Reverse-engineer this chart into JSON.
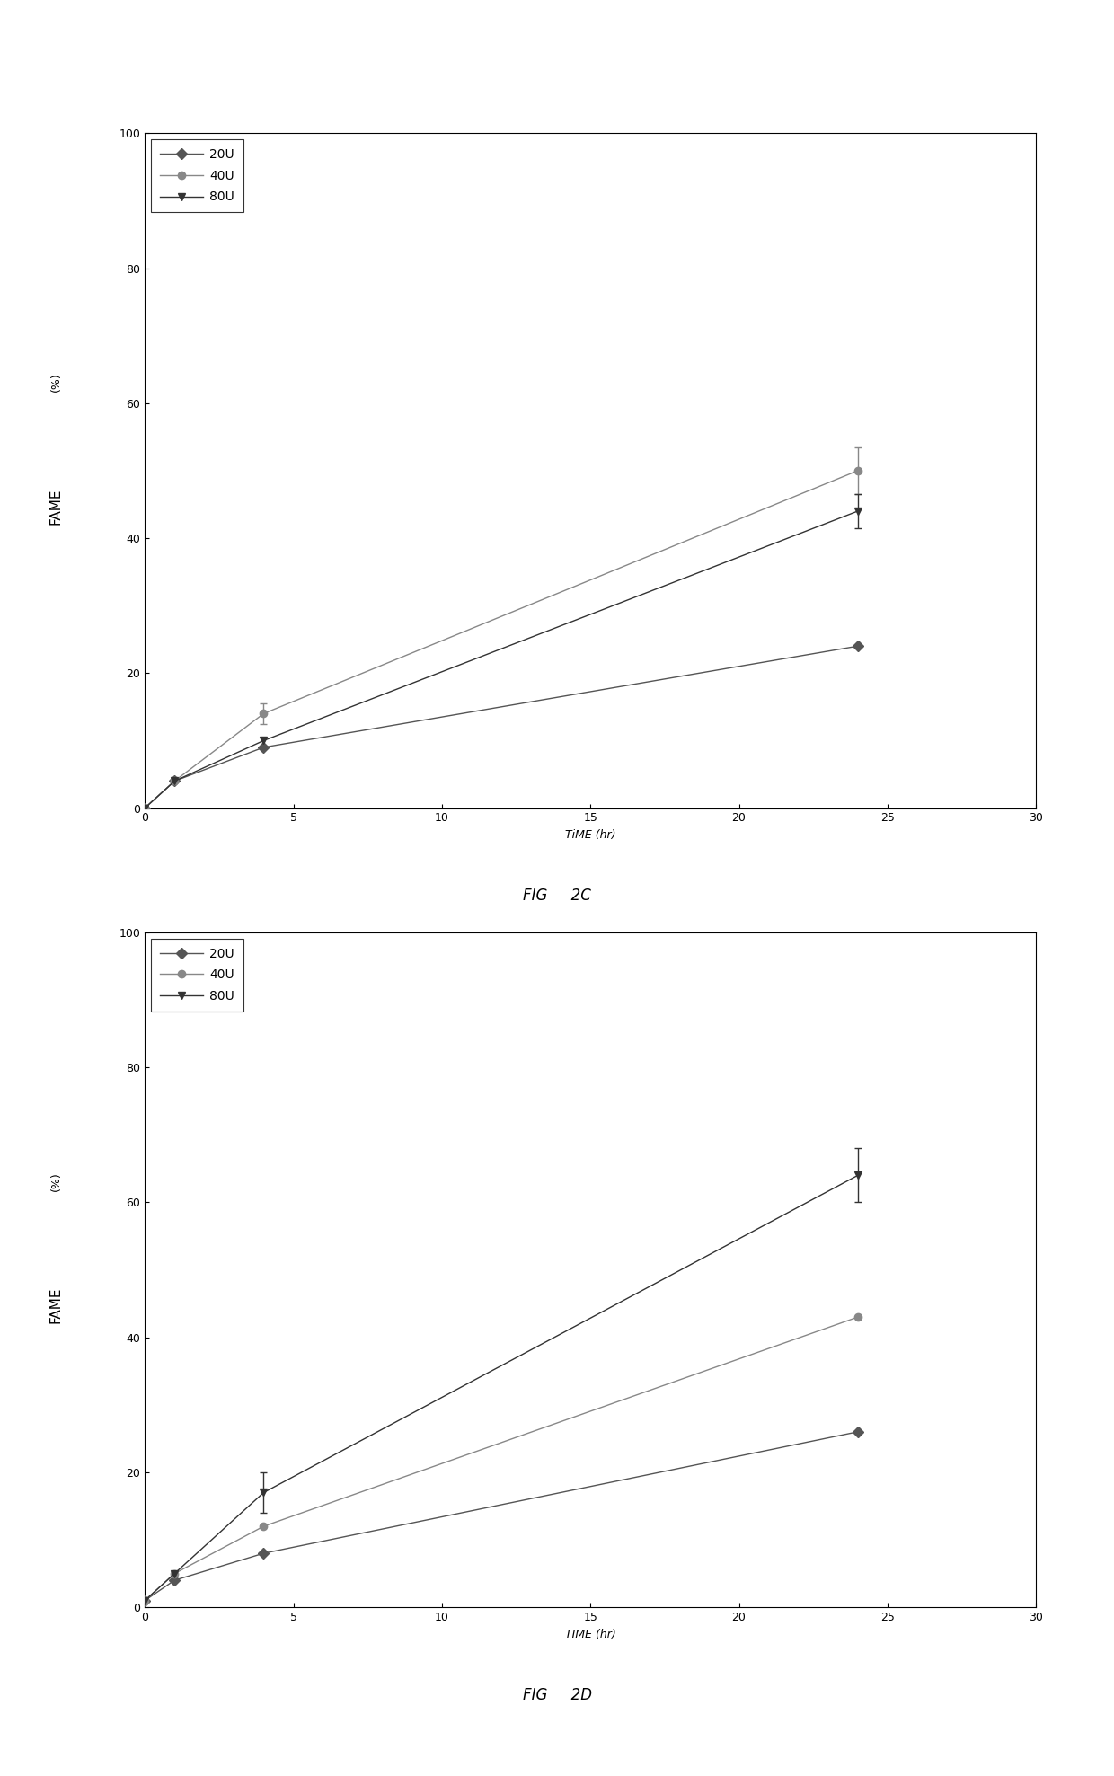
{
  "fig2C": {
    "x": [
      0,
      1,
      4,
      24
    ],
    "series": {
      "20U": {
        "y": [
          0,
          4,
          9,
          24
        ],
        "yerr": [
          0,
          0,
          0,
          0
        ],
        "marker": "D",
        "color": "#555555"
      },
      "40U": {
        "y": [
          0,
          4,
          14,
          50
        ],
        "yerr": [
          0,
          0,
          1.5,
          3.5
        ],
        "marker": "o",
        "color": "#888888"
      },
      "80U": {
        "y": [
          0,
          4,
          10,
          44
        ],
        "yerr": [
          0,
          0,
          0,
          2.5
        ],
        "marker": "v",
        "color": "#333333"
      }
    },
    "xlabel": "TIME (hr)",
    "fig_label": "2C",
    "xlabel_small": "TiME (hr)"
  },
  "fig2D": {
    "x": [
      0,
      1,
      4,
      24
    ],
    "series": {
      "20U": {
        "y": [
          1,
          4,
          8,
          26
        ],
        "yerr": [
          0,
          0,
          0,
          0
        ],
        "marker": "D",
        "color": "#555555"
      },
      "40U": {
        "y": [
          1,
          5,
          12,
          43
        ],
        "yerr": [
          0,
          0,
          0,
          0
        ],
        "marker": "o",
        "color": "#888888"
      },
      "80U": {
        "y": [
          1,
          5,
          17,
          64
        ],
        "yerr": [
          0,
          0,
          3,
          4
        ],
        "marker": "v",
        "color": "#333333"
      }
    },
    "xlabel": "TIME (hr)",
    "fig_label": "2D",
    "xlabel_small": "TIME (hr)"
  },
  "ylim": [
    0,
    100
  ],
  "xlim": [
    0,
    30
  ],
  "xticks": [
    0,
    5,
    10,
    15,
    20,
    25,
    30
  ],
  "yticks": [
    0,
    20,
    40,
    60,
    80,
    100
  ],
  "background_color": "#ffffff",
  "axis_label_fontsize": 10,
  "tick_fontsize": 9,
  "legend_fontsize": 10,
  "marker_size": 6,
  "linewidth": 1.0,
  "capsize": 3,
  "fig_label_fontsize_big": 20,
  "fig_label_fontsize_small": 9
}
